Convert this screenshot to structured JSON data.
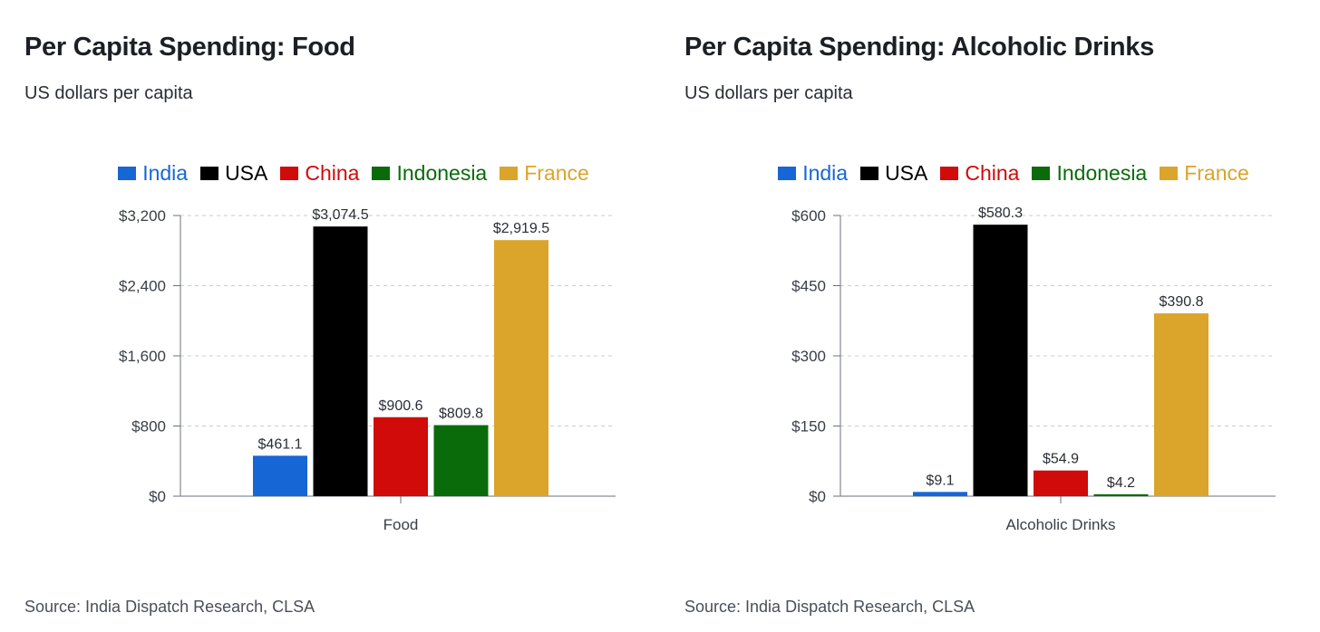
{
  "charts": [
    {
      "title": "Per Capita Spending: Food",
      "subtitle": "US dollars per capita",
      "source": "Source: India Dispatch Research, CLSA"
    },
    {
      "title": "Per Capita Spending: Alcoholic Drinks",
      "subtitle": "US dollars per capita",
      "source": "Source: India Dispatch Research, CLSA"
    }
  ],
  "legend": [
    {
      "name": "India",
      "color": "#1766d6"
    },
    {
      "name": "USA",
      "color": "#000000"
    },
    {
      "name": "China",
      "color": "#d10a0a"
    },
    {
      "name": "Indonesia",
      "color": "#0a6b0a"
    },
    {
      "name": "France",
      "color": "#dba42a"
    }
  ],
  "chart_data": [
    {
      "type": "bar",
      "title": "Per Capita Spending: Food",
      "subtitle": "US dollars per capita",
      "categories": [
        "Food"
      ],
      "series": [
        {
          "name": "India",
          "values": [
            461.1
          ],
          "label": "$461.1"
        },
        {
          "name": "USA",
          "values": [
            3074.5
          ],
          "label": "$3,074.5"
        },
        {
          "name": "China",
          "values": [
            900.6
          ],
          "label": "$900.6"
        },
        {
          "name": "Indonesia",
          "values": [
            809.8
          ],
          "label": "$809.8"
        },
        {
          "name": "France",
          "values": [
            2919.5
          ],
          "label": "$2,919.5"
        }
      ],
      "ylim": [
        0,
        3200
      ],
      "yticks": [
        "$0",
        "$800",
        "$1,600",
        "$2,400",
        "$3,200"
      ],
      "ytick_values": [
        0,
        800,
        1600,
        2400,
        3200
      ],
      "grid": true,
      "legend_position": "top"
    },
    {
      "type": "bar",
      "title": "Per Capita Spending: Alcoholic Drinks",
      "subtitle": "US dollars per capita",
      "categories": [
        "Alcoholic Drinks"
      ],
      "series": [
        {
          "name": "India",
          "values": [
            9.1
          ],
          "label": "$9.1"
        },
        {
          "name": "USA",
          "values": [
            580.3
          ],
          "label": "$580.3"
        },
        {
          "name": "China",
          "values": [
            54.9
          ],
          "label": "$54.9"
        },
        {
          "name": "Indonesia",
          "values": [
            4.2
          ],
          "label": "$4.2"
        },
        {
          "name": "France",
          "values": [
            390.8
          ],
          "label": "$390.8"
        }
      ],
      "ylim": [
        0,
        600
      ],
      "yticks": [
        "$0",
        "$150",
        "$300",
        "$450",
        "$600"
      ],
      "ytick_values": [
        0,
        150,
        300,
        450,
        600
      ],
      "grid": true,
      "legend_position": "top"
    }
  ]
}
